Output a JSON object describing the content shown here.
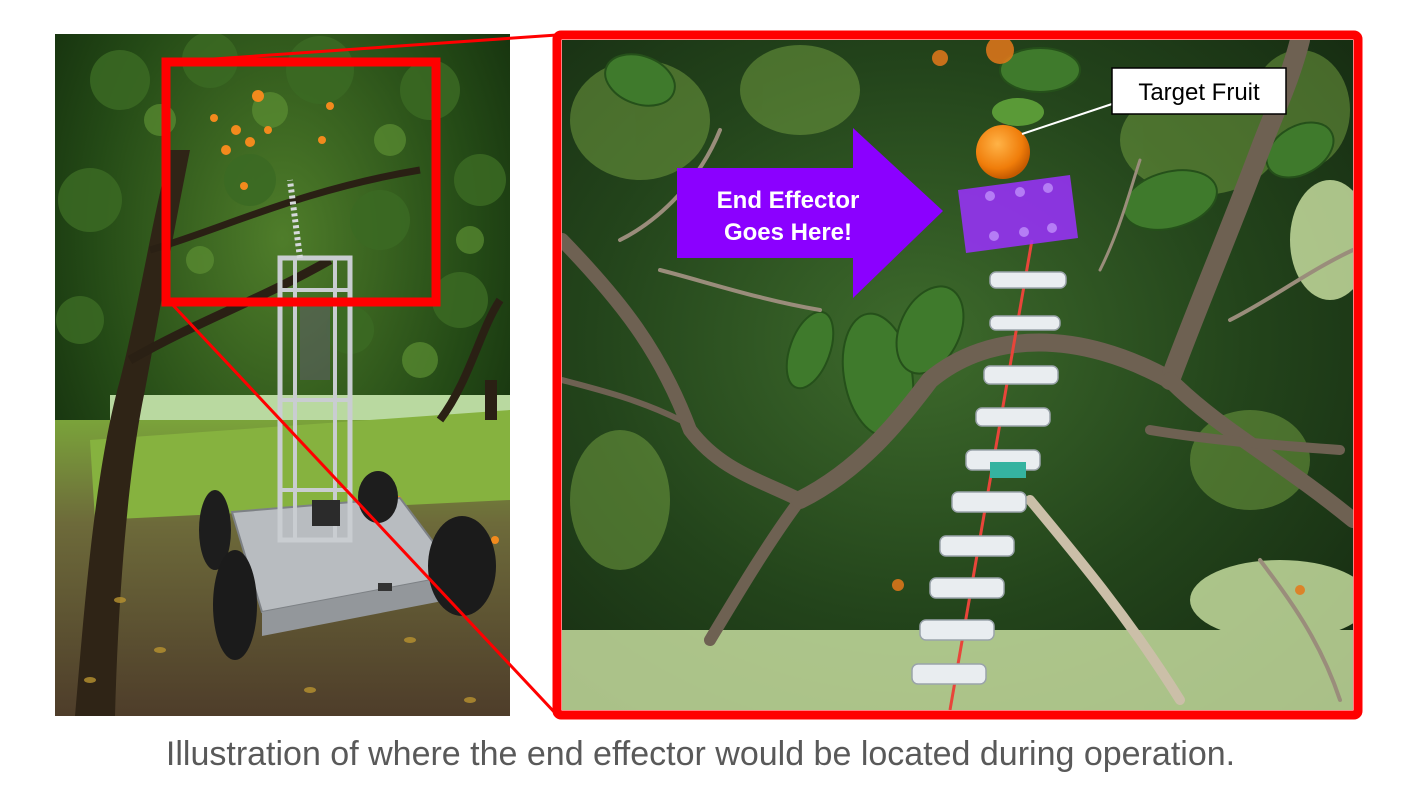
{
  "figure": {
    "left_photo": {
      "subject": "Orchard tree with harvesting robot on wheeled cart"
    },
    "zoom_photo": {
      "subject": "Close-up of tree canopy with continuum arm and fruit"
    },
    "colors": {
      "highlight_frame": "#ff0000",
      "end_effector_arrow": "#8b00ff",
      "end_effector_box": "#9b30ff",
      "target_label_border": "#000000",
      "caption_text": "#595959"
    },
    "arrow_label_line1": "End Effector",
    "arrow_label_line2": "Goes Here!",
    "target_label": "Target Fruit",
    "caption": "Illustration of where the end effector would be located during operation."
  }
}
